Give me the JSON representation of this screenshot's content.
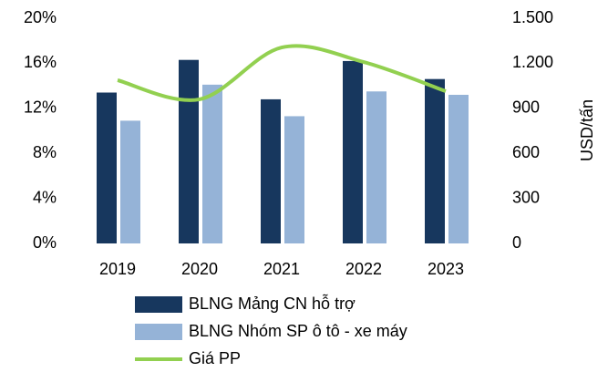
{
  "chart_data": {
    "type": "bar",
    "categories": [
      "2019",
      "2020",
      "2021",
      "2022",
      "2023"
    ],
    "series": [
      {
        "name": "BLNG Mảng CN hỗ trợ",
        "type": "bar",
        "color": "#17375e",
        "values": [
          13.4,
          16.3,
          12.8,
          16.2,
          14.6
        ]
      },
      {
        "name": "BLNG Nhóm SP ô tô - xe máy",
        "type": "bar",
        "color": "#95b3d7",
        "values": [
          10.9,
          14.1,
          11.3,
          13.5,
          13.2
        ]
      },
      {
        "name": "Giá PP",
        "type": "line",
        "axis": "y2",
        "color": "#92d050",
        "values": [
          1087,
          960,
          1305,
          1208,
          1014
        ]
      }
    ],
    "ylim": [
      0,
      20
    ],
    "yticks": [
      {
        "value": 0,
        "label": "0%"
      },
      {
        "value": 4,
        "label": "4%"
      },
      {
        "value": 8,
        "label": "8%"
      },
      {
        "value": 12,
        "label": "12%"
      },
      {
        "value": 16,
        "label": "16%"
      },
      {
        "value": 20,
        "label": "20%"
      }
    ],
    "y2label": "USD/tấn",
    "y2lim": [
      0,
      1500
    ],
    "y2ticks": [
      0,
      300,
      600,
      900,
      {
        "value": 1200,
        "label": "1.200"
      },
      {
        "value": 1500,
        "label": "1.500"
      }
    ],
    "grid": false
  }
}
